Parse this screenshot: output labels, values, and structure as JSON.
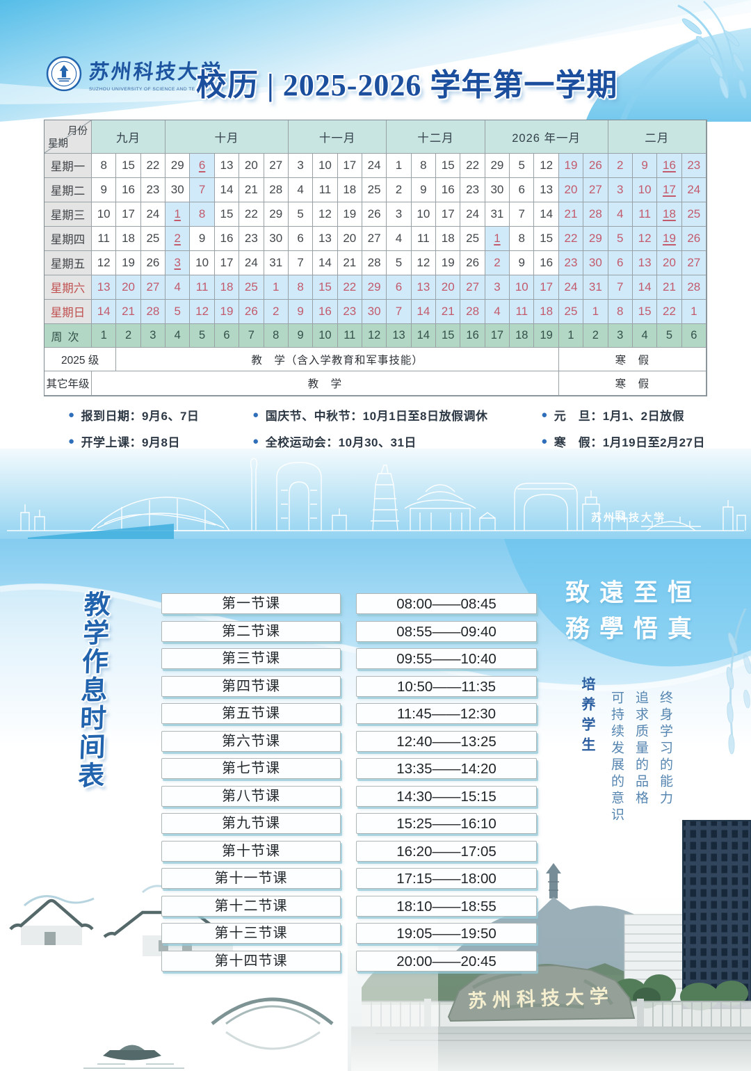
{
  "header": {
    "logo": {
      "university_cn": "苏州科技大学",
      "university_en": "SUZHOU UNIVERSITY OF SCIENCE AND TECHNOLOGY"
    },
    "title": "校历 | 2025-2026 学年第一学期"
  },
  "calendar": {
    "corner": {
      "top": "月份",
      "bottom": "星期"
    },
    "months": [
      {
        "label": "九月",
        "span": 3
      },
      {
        "label": "十月",
        "span": 5
      },
      {
        "label": "十一月",
        "span": 4
      },
      {
        "label": "十二月",
        "span": 4
      },
      {
        "label": "2026 年一月",
        "span": 5
      },
      {
        "label": "二月",
        "span": 4
      }
    ],
    "day_rows": [
      {
        "label": "星期一",
        "values": [
          8,
          15,
          22,
          29,
          6,
          13,
          20,
          27,
          3,
          10,
          17,
          24,
          1,
          8,
          15,
          22,
          29,
          5,
          12,
          19,
          26,
          2,
          9,
          16,
          23
        ],
        "holiday": [
          4,
          19,
          20,
          21,
          22,
          23,
          24
        ],
        "underline": [
          4,
          23
        ]
      },
      {
        "label": "星期二",
        "values": [
          9,
          16,
          23,
          30,
          7,
          14,
          21,
          28,
          4,
          11,
          18,
          25,
          2,
          9,
          16,
          23,
          30,
          6,
          13,
          20,
          27,
          3,
          10,
          17,
          24
        ],
        "holiday": [
          4,
          19,
          20,
          21,
          22,
          23,
          24
        ],
        "underline": [
          23
        ]
      },
      {
        "label": "星期三",
        "values": [
          10,
          17,
          24,
          1,
          8,
          15,
          22,
          29,
          5,
          12,
          19,
          26,
          3,
          10,
          17,
          24,
          31,
          7,
          14,
          21,
          28,
          4,
          11,
          18,
          25
        ],
        "holiday": [
          3,
          4,
          19,
          20,
          21,
          22,
          23,
          24
        ],
        "underline": [
          3,
          23
        ]
      },
      {
        "label": "星期四",
        "values": [
          11,
          18,
          25,
          2,
          9,
          16,
          23,
          30,
          6,
          13,
          20,
          27,
          4,
          11,
          18,
          25,
          1,
          8,
          15,
          22,
          29,
          5,
          12,
          19,
          26
        ],
        "holiday": [
          3,
          16,
          19,
          20,
          21,
          22,
          23,
          24
        ],
        "underline": [
          3,
          16,
          23
        ]
      },
      {
        "label": "星期五",
        "values": [
          12,
          19,
          26,
          3,
          10,
          17,
          24,
          31,
          7,
          14,
          21,
          28,
          5,
          12,
          19,
          26,
          2,
          9,
          16,
          23,
          30,
          6,
          13,
          20,
          27
        ],
        "holiday": [
          3,
          16,
          19,
          20,
          21,
          22,
          23,
          24
        ],
        "underline": [
          3
        ]
      },
      {
        "label": "星期六",
        "values": [
          13,
          20,
          27,
          4,
          11,
          18,
          25,
          1,
          8,
          15,
          22,
          29,
          6,
          13,
          20,
          27,
          3,
          10,
          17,
          24,
          31,
          7,
          14,
          21,
          28
        ],
        "weekend": true
      },
      {
        "label": "星期日",
        "values": [
          14,
          21,
          28,
          5,
          12,
          19,
          26,
          2,
          9,
          16,
          23,
          30,
          7,
          14,
          21,
          28,
          4,
          11,
          18,
          25,
          1,
          8,
          15,
          22,
          1
        ],
        "weekend": true
      }
    ],
    "week_row": {
      "label": "周次",
      "values": [
        1,
        2,
        3,
        4,
        5,
        6,
        7,
        8,
        9,
        10,
        11,
        12,
        13,
        14,
        15,
        16,
        17,
        18,
        19,
        1,
        2,
        3,
        4,
        5,
        6
      ]
    },
    "program_rows": [
      {
        "label": "2025 级",
        "teaching": "教　学（含入学教育和军事技能）",
        "vacation": "寒　假"
      },
      {
        "label": "其它年级",
        "teaching": "教　学",
        "vacation": "寒　假"
      }
    ]
  },
  "notes": {
    "bullet": "●",
    "columns": [
      [
        "报到日期：9月6、7日",
        "开学上课：9月8日"
      ],
      [
        "国庆节、中秋节：10月1日至8日放假调休",
        "全校运动会：10月30、31日"
      ],
      [
        "元　旦：1月1、2日放假",
        "寒　假：1月19日至2月27日"
      ]
    ]
  },
  "skyline": {
    "signature": "苏州科技大学"
  },
  "schedule": {
    "vertical_title": "教学作息时间表",
    "periods": [
      {
        "name": "第一节课",
        "time": "08:00——08:45"
      },
      {
        "name": "第二节课",
        "time": "08:55——09:40"
      },
      {
        "name": "第三节课",
        "time": "09:55——10:40"
      },
      {
        "name": "第四节课",
        "time": "10:50——11:35"
      },
      {
        "name": "第五节课",
        "time": "11:45——12:30"
      },
      {
        "name": "第六节课",
        "time": "12:40——13:25"
      },
      {
        "name": "第七节课",
        "time": "13:35——14:20"
      },
      {
        "name": "第八节课",
        "time": "14:30——15:15"
      },
      {
        "name": "第九节课",
        "time": "15:25——16:10"
      },
      {
        "name": "第十节课",
        "time": "16:20——17:05"
      },
      {
        "name": "第十一节课",
        "time": "17:15——18:00"
      },
      {
        "name": "第十二节课",
        "time": "18:10——18:55"
      },
      {
        "name": "第十三节课",
        "time": "19:05——19:50"
      },
      {
        "name": "第十四节课",
        "time": "20:00——20:45"
      }
    ]
  },
  "motto": {
    "line1": "致遠至恒",
    "line2": "務學悟真"
  },
  "values": {
    "lead": "培养学生",
    "items": [
      "可持续发展的意识",
      "追求质量的品格",
      "终身学习的能力"
    ]
  },
  "footer": {
    "gate_calligraphy": "苏州科技大学"
  },
  "colors": {
    "title_blue": "#1b4f9e",
    "month_header_bg": "#c9e5e1",
    "weekday_label_bg": "#e4e4e4",
    "holiday_bg": "#d0eafa",
    "holiday_red": "#c25a6c",
    "week_row_bg": "#b2d7c4",
    "sky_blue": "#7ccaec"
  }
}
